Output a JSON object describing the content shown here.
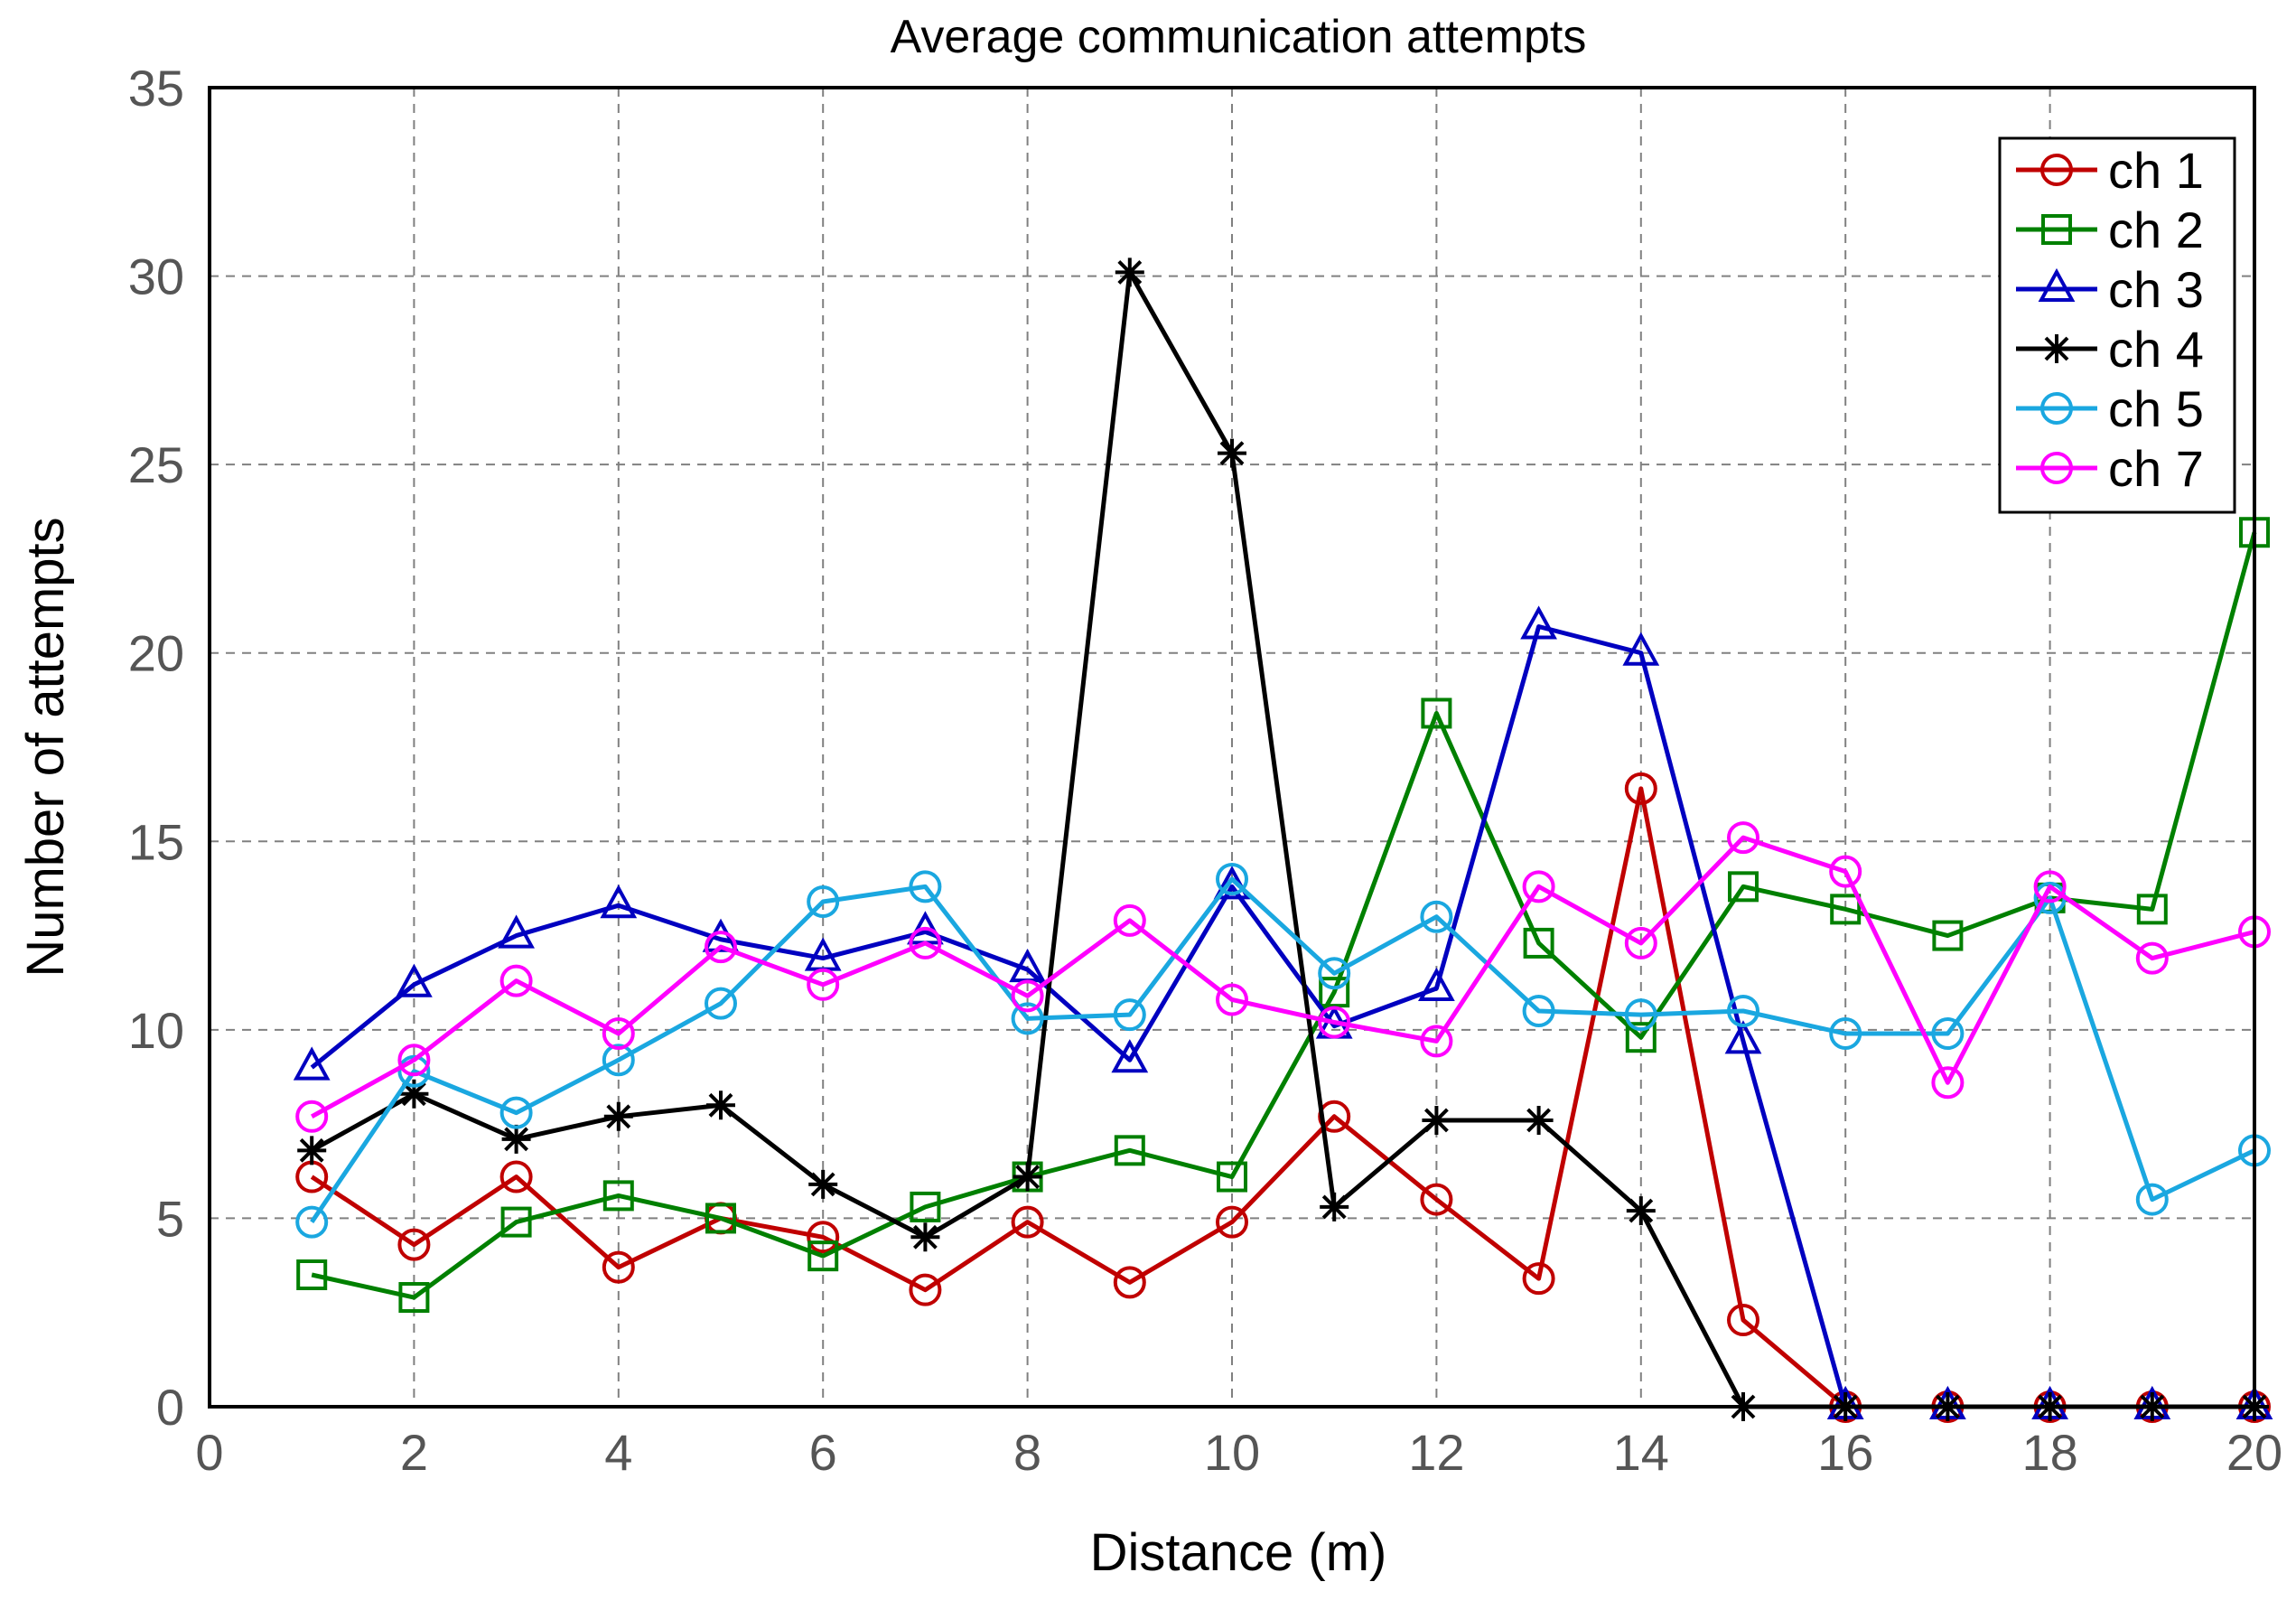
{
  "chart_data": {
    "type": "line",
    "title": "Average communication attempts",
    "xlabel": "Distance (m)",
    "ylabel": "Number of attempts",
    "xlim": [
      0,
      20
    ],
    "ylim": [
      0,
      35
    ],
    "xticks": [
      0,
      2,
      4,
      6,
      8,
      10,
      12,
      14,
      16,
      18,
      20
    ],
    "yticks": [
      0,
      5,
      10,
      15,
      20,
      25,
      30,
      35
    ],
    "grid": true,
    "legend_position": "top-right",
    "x": [
      1,
      2,
      3,
      4,
      5,
      6,
      7,
      8,
      9,
      10,
      11,
      12,
      13,
      14,
      15,
      16,
      17,
      18,
      19,
      20
    ],
    "series": [
      {
        "name": "ch 1",
        "color": "#c00000",
        "marker": "circle",
        "values": [
          6.1,
          4.3,
          6.1,
          3.7,
          5.0,
          4.5,
          3.1,
          4.9,
          3.3,
          4.9,
          7.7,
          5.5,
          3.4,
          16.4,
          2.3,
          0,
          0,
          0,
          0,
          0
        ]
      },
      {
        "name": "ch 2",
        "color": "#008000",
        "marker": "square",
        "values": [
          3.5,
          2.9,
          4.9,
          5.6,
          5.0,
          4.0,
          5.3,
          6.1,
          6.8,
          6.1,
          11.0,
          18.4,
          12.3,
          9.8,
          13.8,
          13.2,
          12.5,
          13.5,
          13.2,
          23.2
        ]
      },
      {
        "name": "ch 3",
        "color": "#0000c0",
        "marker": "triangle",
        "values": [
          9.0,
          11.2,
          12.5,
          13.3,
          12.4,
          11.9,
          12.6,
          11.6,
          9.2,
          13.8,
          10.1,
          11.1,
          20.7,
          20.0,
          9.7,
          0,
          0,
          0,
          0,
          0
        ]
      },
      {
        "name": "ch 4",
        "color": "#000000",
        "marker": "star",
        "values": [
          6.8,
          8.3,
          7.1,
          7.7,
          8.0,
          5.9,
          4.5,
          6.1,
          30.1,
          25.3,
          5.3,
          7.6,
          7.6,
          5.2,
          0,
          0,
          0,
          0,
          0,
          0
        ]
      },
      {
        "name": "ch 5",
        "color": "#1aa7e0",
        "marker": "circle",
        "values": [
          4.9,
          8.9,
          7.8,
          9.2,
          10.7,
          13.4,
          13.8,
          10.3,
          10.4,
          14.0,
          11.5,
          13.0,
          10.5,
          10.4,
          10.5,
          9.9,
          9.9,
          13.5,
          5.5,
          6.8
        ]
      },
      {
        "name": "ch 7",
        "color": "#ff00ff",
        "marker": "circle",
        "values": [
          7.7,
          9.2,
          11.3,
          9.9,
          12.2,
          11.2,
          12.3,
          10.9,
          12.9,
          10.8,
          10.2,
          9.7,
          13.8,
          12.3,
          15.1,
          14.2,
          8.6,
          13.8,
          11.9,
          12.6
        ]
      }
    ]
  }
}
